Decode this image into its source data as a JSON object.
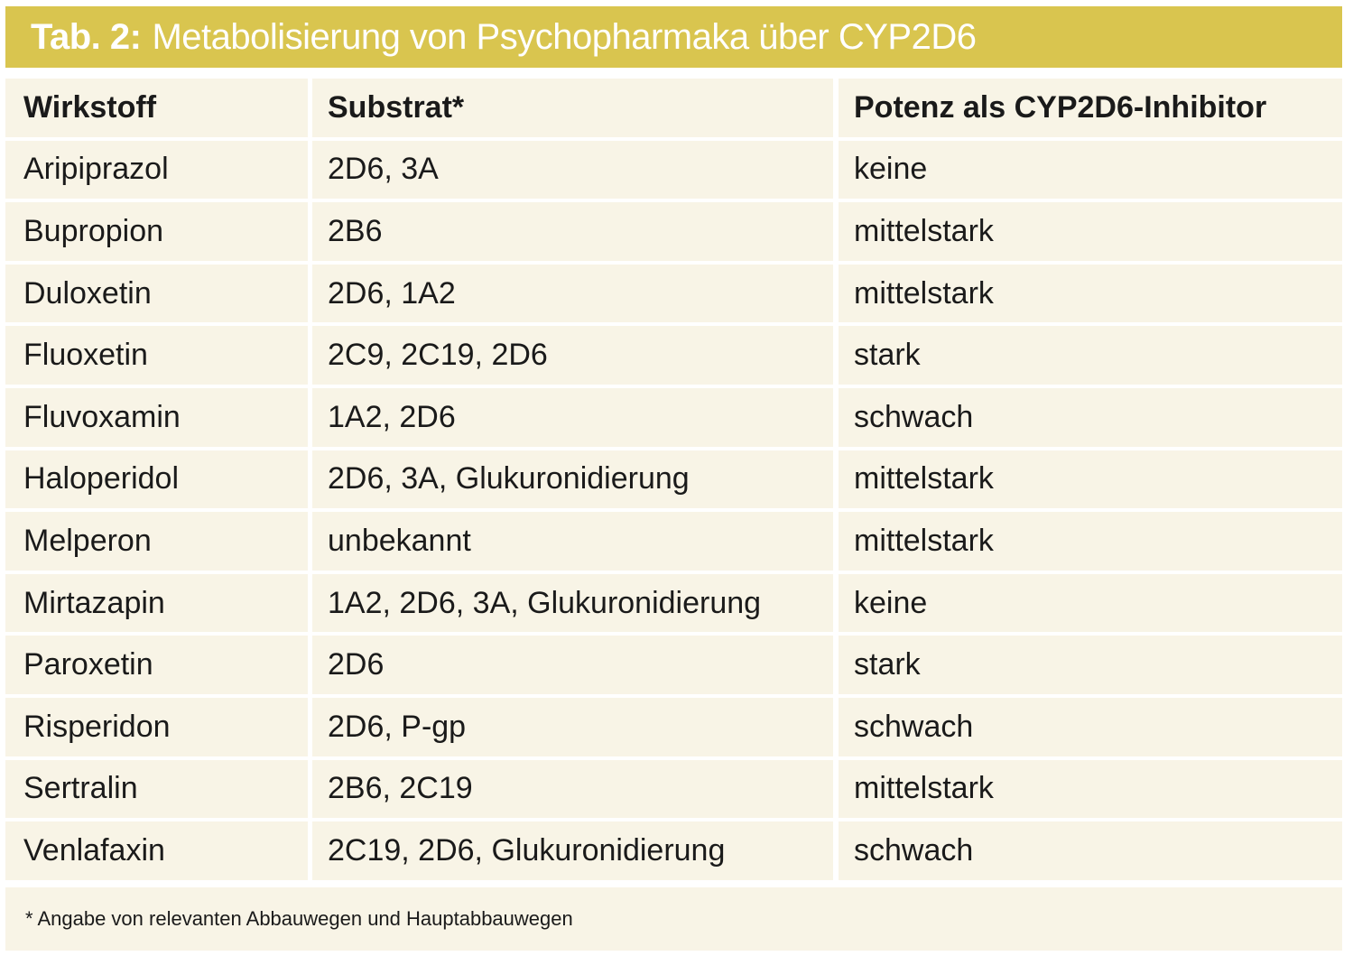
{
  "title": {
    "number": "Tab. 2:",
    "text": "Metabolisierung von Psychopharmaka über CYP2D6"
  },
  "columns": [
    "Wirkstoff",
    "Substrat*",
    "Potenz als CYP2D6-Inhibitor"
  ],
  "rows": [
    [
      "Aripiprazol",
      "2D6, 3A",
      "keine"
    ],
    [
      "Bupropion",
      "2B6",
      "mittelstark"
    ],
    [
      "Duloxetin",
      "2D6, 1A2",
      "mittelstark"
    ],
    [
      "Fluoxetin",
      "2C9, 2C19, 2D6",
      "stark"
    ],
    [
      "Fluvoxamin",
      "1A2, 2D6",
      "schwach"
    ],
    [
      "Haloperidol",
      "2D6, 3A, Glukuronidierung",
      "mittelstark"
    ],
    [
      "Melperon",
      "unbekannt",
      "mittelstark"
    ],
    [
      "Mirtazapin",
      "1A2, 2D6, 3A, Glukuronidierung",
      "keine"
    ],
    [
      "Paroxetin",
      "2D6",
      "stark"
    ],
    [
      "Risperidon",
      "2D6, P-gp",
      "schwach"
    ],
    [
      "Sertralin",
      "2B6, 2C19",
      "mittelstark"
    ],
    [
      "Venlafaxin",
      "2C19, 2D6, Glukuronidierung",
      "schwach"
    ]
  ],
  "footnote": "* Angabe von relevanten Abbauwegen und Hauptabbauwegen",
  "colors": {
    "title_bar": "#d9c54f",
    "cell_background": "#f8f4e6"
  }
}
